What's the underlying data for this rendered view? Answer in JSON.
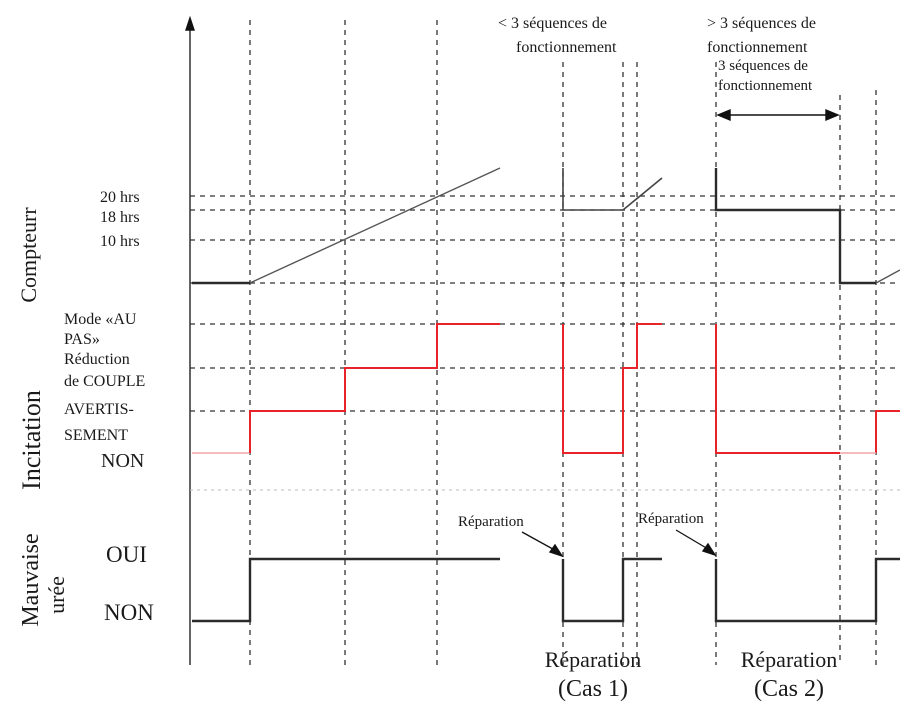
{
  "rows": {
    "counter": {
      "label": "Compteurr",
      "levels": [
        "20 hrs",
        "18 hrs",
        "10 hrs"
      ]
    },
    "incitation": {
      "label": "Incitation",
      "levels": [
        [
          "Mode «AU",
          "PAS»"
        ],
        [
          "Réduction",
          "de COUPLE"
        ],
        [
          "AVERTIS-",
          "SEMENT"
        ]
      ],
      "off_label": "NON"
    },
    "bad_urea": {
      "label_line1": "Mauvaise",
      "label_line2": "urée",
      "yes_label": "OUI",
      "no_label": "NON"
    }
  },
  "annotations": {
    "less_than": [
      "< 3 séquences de",
      "fonctionnement"
    ],
    "greater_than": [
      "> 3 séquences de",
      "fonctionnement"
    ],
    "overlap_text": [
      "3 séquences de",
      "fonctionnement"
    ],
    "repair_arrow_1": "Réparation",
    "repair_arrow_2": "Réparation"
  },
  "footer": {
    "case1": [
      "Réparation",
      "(Cas 1)"
    ],
    "case2": [
      "Réparation",
      "(Cas 2)"
    ]
  },
  "colors": {
    "incitation_signal": "#e8232a",
    "signal": "#2b2b2b",
    "grid": "#333333"
  }
}
